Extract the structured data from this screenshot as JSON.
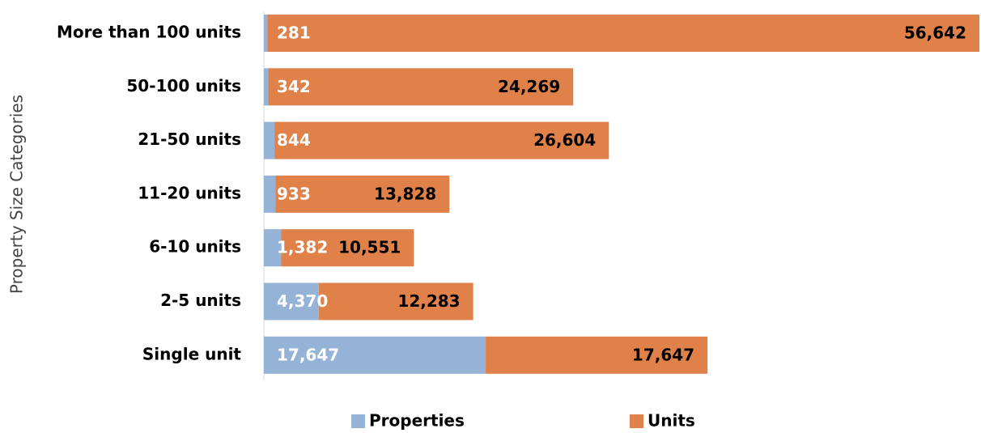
{
  "chart_data": {
    "type": "stacked_bar_horizontal",
    "y_axis_label": "Property Size Categories",
    "categories": [
      "More than 100 units",
      "50-100 units",
      "21-50 units",
      "11-20 units",
      "6-10 units",
      "2-5 units",
      "Single unit"
    ],
    "series": [
      {
        "name": "Properties",
        "color": "#95b3d7",
        "values": [
          281,
          342,
          844,
          933,
          1382,
          4370,
          17647
        ],
        "value_labels": [
          "281",
          "342",
          "844",
          "933",
          "1,382",
          "4,370",
          "17,647"
        ]
      },
      {
        "name": "Units",
        "color": "#e0814a",
        "values": [
          56642,
          24269,
          26604,
          13828,
          10551,
          12283,
          17647
        ],
        "value_labels": [
          "56,642",
          "24,269",
          "26,604",
          "13,828",
          "10,551",
          "12,283",
          "17,647"
        ]
      }
    ],
    "legend": "bottom"
  }
}
